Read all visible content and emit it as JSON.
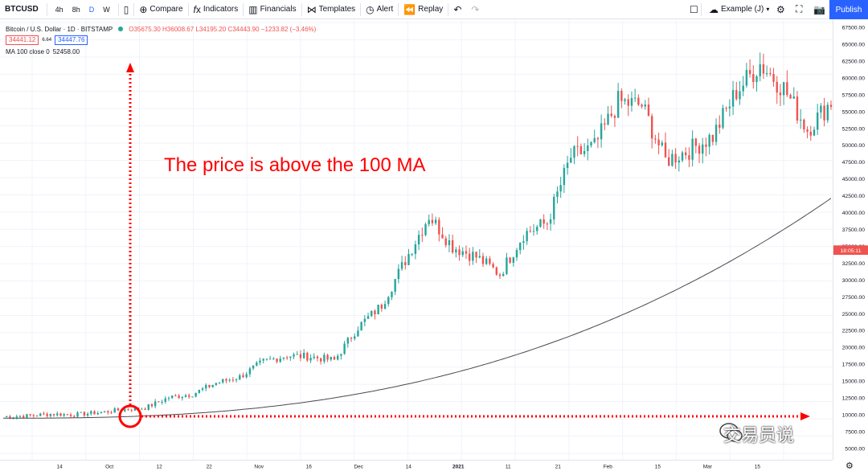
{
  "toolbar": {
    "symbol": "BTCUSD",
    "resolutions": [
      "4h",
      "8h",
      "D",
      "W"
    ],
    "active_resolution": "D",
    "compare": "Compare",
    "indicators": "Indicators",
    "financials": "Financials",
    "templates": "Templates",
    "alert": "Alert",
    "replay": "Replay",
    "layout_name": "Example (J)",
    "publish": "Publish"
  },
  "legend": {
    "title": "Bitcoin / U.S. Dollar · 1D · BITSTAMP",
    "ohlc": "O35675.30 H36008.67 L34195.20 C34443.90 −1233.82 (−3.46%)",
    "bid": "34441.12",
    "spread": "6.64",
    "ask": "34447.76",
    "ma_label": "MA 100 close 0",
    "ma_value": "52458.00"
  },
  "annotation": "The price is above the 100 MA",
  "watermark": "交易员说",
  "current_price_label": "18:05:11",
  "colors": {
    "up": "#26a69a",
    "down": "#ef5350",
    "ma": "#4a4a4a",
    "annotation": "#ff0000",
    "accent": "#2962ff"
  },
  "chart_data": {
    "type": "candlestick",
    "price_ticks": [
      "67500.00",
      "65000.00",
      "62500.00",
      "60000.00",
      "57500.00",
      "55000.00",
      "52500.00",
      "50000.00",
      "47500.00",
      "45000.00",
      "42500.00",
      "40000.00",
      "37500.00",
      "35000.00",
      "32500.00",
      "30000.00",
      "27500.00",
      "25000.00",
      "22500.00",
      "20000.00",
      "17500.00",
      "15000.00",
      "12500.00",
      "10000.00",
      "7500.00",
      "5000.00"
    ],
    "time_ticks": [
      "14",
      "Oct",
      "12",
      "22",
      "Nov",
      "16",
      "Dec",
      "14",
      "2021",
      "11",
      "21",
      "Feb",
      "15",
      "Mar",
      "15"
    ],
    "ylim": [
      5000,
      67500
    ],
    "weekly_closes": [
      10300,
      10450,
      10700,
      10600,
      10900,
      11300,
      11600,
      13100,
      13600,
      15200,
      16100,
      18300,
      19200,
      19000,
      18500,
      23300,
      26500,
      33000,
      39500,
      35000,
      33500,
      31000,
      36800,
      38500,
      48000,
      49500,
      56000,
      55500,
      47500,
      49000,
      51000,
      57500,
      61500,
      58000,
      52000,
      56000
    ]
  }
}
